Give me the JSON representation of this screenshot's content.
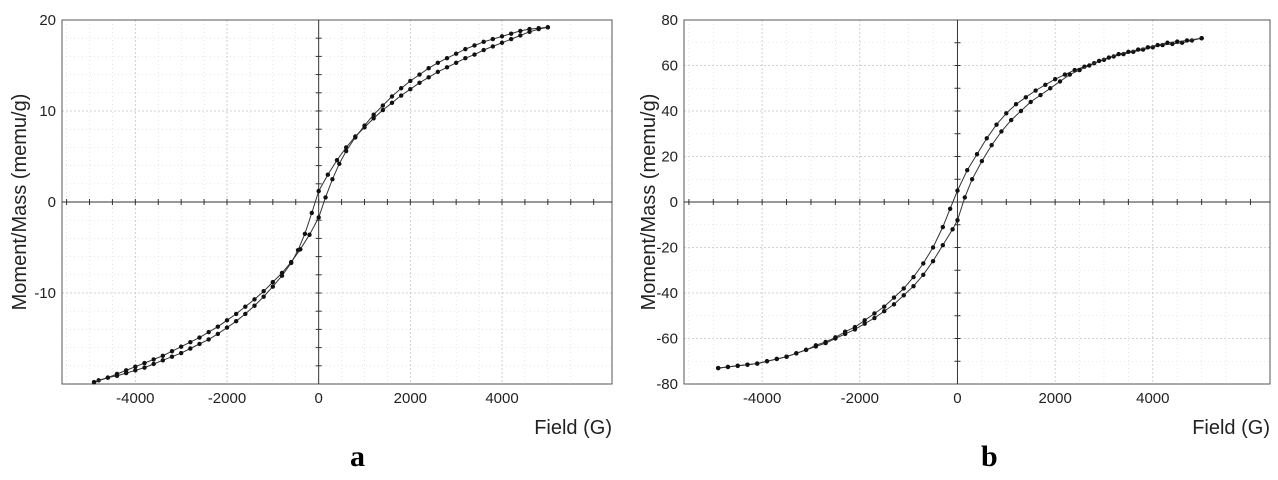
{
  "chart_data": [
    {
      "type": "line",
      "panel_label": "a",
      "xlabel": "Field (G)",
      "ylabel": "Moment/Mass (memu/g)",
      "xlim": [
        -5600,
        6400
      ],
      "ylim": [
        -20,
        20
      ],
      "x_ticks": [
        -4000,
        -2000,
        0,
        2000,
        4000
      ],
      "y_ticks": [
        -10,
        0,
        10,
        20
      ],
      "y_tick_labels": [
        "-10",
        "0",
        "10",
        "20"
      ],
      "grid": true,
      "series": [
        {
          "x": [
            5000,
            4800,
            4600,
            4400,
            4200,
            4000,
            3800,
            3600,
            3400,
            3200,
            3000,
            2800,
            2600,
            2400,
            2200,
            2000,
            1800,
            1600,
            1400,
            1200,
            1000,
            800,
            600,
            400,
            200,
            0,
            -150,
            -300,
            -450,
            -600,
            -800,
            -1000,
            -1200,
            -1400,
            -1600,
            -1800,
            -2000,
            -2200,
            -2400,
            -2600,
            -2800,
            -3000,
            -3200,
            -3400,
            -3600,
            -3800,
            -4000,
            -4200,
            -4400,
            -4600,
            -4800,
            -4900
          ],
          "y": [
            19.2,
            19.0,
            18.7,
            18.3,
            17.9,
            17.5,
            17.1,
            16.7,
            16.2,
            15.8,
            15.3,
            14.8,
            14.3,
            13.7,
            13.1,
            12.4,
            11.7,
            10.9,
            10.1,
            9.2,
            8.2,
            7.2,
            6.0,
            4.6,
            3.0,
            1.2,
            -1.2,
            -3.5,
            -5.3,
            -6.7,
            -8.1,
            -9.3,
            -10.4,
            -11.4,
            -12.3,
            -13.1,
            -13.8,
            -14.5,
            -15.1,
            -15.6,
            -16.1,
            -16.6,
            -17.0,
            -17.4,
            -17.8,
            -18.2,
            -18.5,
            -18.8,
            -19.1,
            -19.3,
            -19.6,
            -19.8
          ]
        },
        {
          "x": [
            -4900,
            -4600,
            -4400,
            -4200,
            -4000,
            -3800,
            -3600,
            -3400,
            -3200,
            -3000,
            -2800,
            -2600,
            -2400,
            -2200,
            -2000,
            -1800,
            -1600,
            -1400,
            -1200,
            -1000,
            -800,
            -600,
            -400,
            -200,
            0,
            150,
            300,
            450,
            600,
            800,
            1000,
            1200,
            1400,
            1600,
            1800,
            2000,
            2200,
            2400,
            2600,
            2800,
            3000,
            3200,
            3400,
            3600,
            3800,
            4000,
            4200,
            4400,
            4600,
            4800,
            5000
          ],
          "y": [
            -19.8,
            -19.3,
            -18.9,
            -18.5,
            -18.1,
            -17.7,
            -17.3,
            -16.9,
            -16.4,
            -15.9,
            -15.4,
            -14.9,
            -14.3,
            -13.7,
            -13.0,
            -12.3,
            -11.5,
            -10.7,
            -9.8,
            -8.8,
            -7.8,
            -6.6,
            -5.2,
            -3.6,
            -1.7,
            0.5,
            2.5,
            4.2,
            5.6,
            7.1,
            8.4,
            9.6,
            10.6,
            11.6,
            12.5,
            13.3,
            14.0,
            14.7,
            15.3,
            15.8,
            16.3,
            16.8,
            17.2,
            17.6,
            17.9,
            18.2,
            18.5,
            18.8,
            19.0,
            19.1,
            19.2
          ]
        }
      ]
    },
    {
      "type": "line",
      "panel_label": "b",
      "xlabel": "Field (G)",
      "ylabel": "Moment/Mass (memu/g)",
      "xlim": [
        -5600,
        6400
      ],
      "ylim": [
        -80,
        80
      ],
      "x_ticks": [
        -4000,
        -2000,
        0,
        2000,
        4000
      ],
      "y_ticks": [
        -80,
        -60,
        -40,
        -20,
        0,
        20,
        40,
        60,
        80
      ],
      "y_tick_labels": [
        "-80",
        "-60",
        "-40",
        "-20",
        "0",
        "20",
        "40",
        "60",
        "80"
      ],
      "grid": true,
      "series": [
        {
          "x": [
            5000,
            4800,
            4600,
            4400,
            4200,
            4000,
            3800,
            3600,
            3400,
            3200,
            3000,
            2800,
            2600,
            2400,
            2200,
            2000,
            1800,
            1600,
            1400,
            1200,
            1000,
            800,
            600,
            400,
            200,
            0,
            -150,
            -300,
            -500,
            -700,
            -900,
            -1100,
            -1300,
            -1500,
            -1700,
            -1900,
            -2100,
            -2300,
            -2500,
            -2700,
            -2900,
            -3100,
            -3300,
            -3500,
            -3700,
            -3900,
            -4100,
            -4300,
            -4500,
            -4700,
            -4900
          ],
          "y": [
            72,
            71,
            70,
            69.5,
            69,
            68,
            67,
            66,
            65,
            64,
            62.5,
            61,
            59.5,
            58,
            56,
            54,
            51.5,
            49,
            46,
            43,
            39,
            34,
            28,
            21,
            14,
            5,
            -3,
            -11,
            -20,
            -27,
            -33,
            -38,
            -42,
            -46,
            -49,
            -52,
            -55,
            -57,
            -59.5,
            -61.5,
            -63,
            -65,
            -66.5,
            -68,
            -69,
            -70,
            -71,
            -71.5,
            -72,
            -72.5,
            -73
          ]
        },
        {
          "x": [
            -4900,
            -4700,
            -4500,
            -4300,
            -4100,
            -3900,
            -3700,
            -3500,
            -3300,
            -3100,
            -2900,
            -2700,
            -2500,
            -2300,
            -2100,
            -1900,
            -1700,
            -1500,
            -1300,
            -1100,
            -900,
            -700,
            -500,
            -300,
            -100,
            0,
            150,
            300,
            500,
            700,
            900,
            1100,
            1300,
            1500,
            1700,
            1900,
            2100,
            2300,
            2500,
            2700,
            2900,
            3100,
            3300,
            3500,
            3700,
            3900,
            4100,
            4300,
            4500,
            4700,
            5000
          ],
          "y": [
            -73,
            -72.5,
            -72,
            -71.5,
            -71,
            -70,
            -69,
            -68,
            -66.5,
            -65,
            -63.5,
            -62,
            -60,
            -58,
            -56,
            -53.5,
            -51,
            -48,
            -45,
            -41,
            -37,
            -32,
            -26,
            -19,
            -12,
            -8,
            2,
            10,
            18,
            25,
            31,
            36,
            40,
            44,
            47,
            50,
            53,
            56,
            58,
            60,
            62,
            63.5,
            65,
            66,
            67,
            68,
            69,
            70,
            70.5,
            71,
            72
          ]
        }
      ]
    }
  ]
}
